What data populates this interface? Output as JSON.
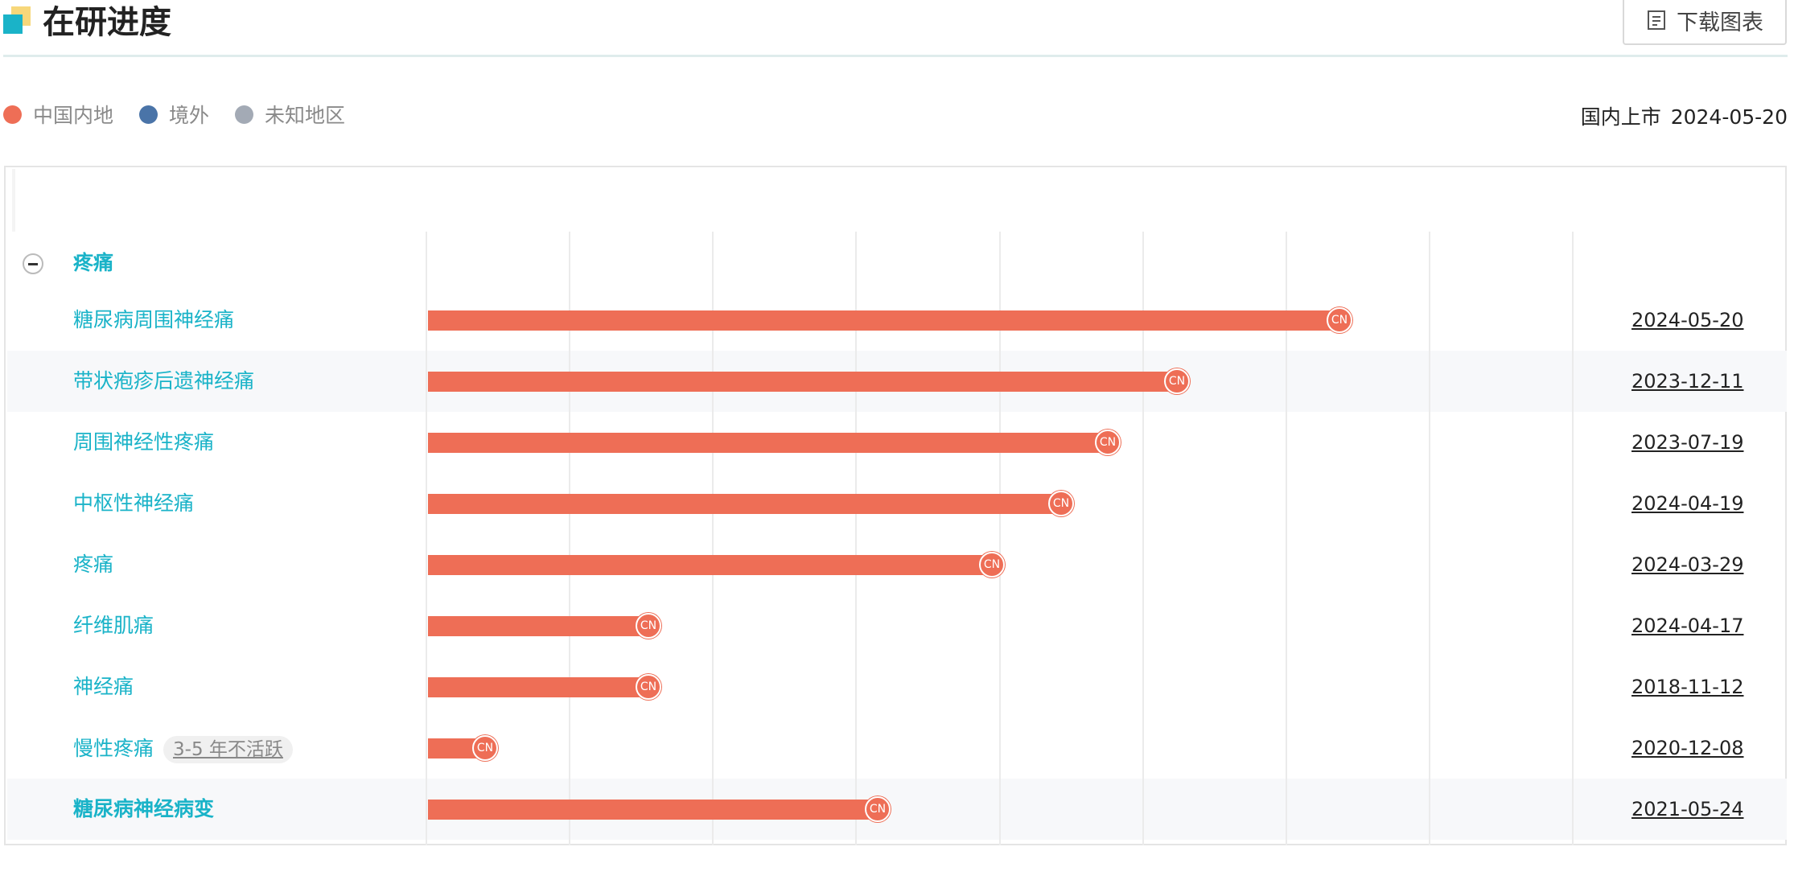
{
  "header": {
    "title": "在研进度",
    "download_label": "下载图表"
  },
  "legend": [
    {
      "label": "中国内地",
      "color": "#ee6e56"
    },
    {
      "label": "境外",
      "color": "#4a74a8"
    },
    {
      "label": "未知地区",
      "color": "#a3aab5"
    }
  ],
  "market": {
    "label": "国内上市",
    "date": "2024-05-20"
  },
  "icons": {
    "download": "document-icon",
    "collapse": "minus-circle-icon"
  },
  "chart_data": {
    "type": "bar",
    "orientation": "horizontal",
    "group": "疼痛",
    "rows": [
      {
        "label": "糖尿病周围神经痛",
        "value": 0.795,
        "marker": "CN",
        "date": "2024-05-20",
        "bold": false,
        "tag": ""
      },
      {
        "label": "带状疱疹后遗神经痛",
        "value": 0.653,
        "marker": "CN",
        "date": "2023-12-11",
        "bold": false,
        "tag": ""
      },
      {
        "label": "周围神经性疼痛",
        "value": 0.593,
        "marker": "CN",
        "date": "2023-07-19",
        "bold": false,
        "tag": ""
      },
      {
        "label": "中枢性神经痛",
        "value": 0.552,
        "marker": "CN",
        "date": "2024-04-19",
        "bold": false,
        "tag": ""
      },
      {
        "label": "疼痛",
        "value": 0.492,
        "marker": "CN",
        "date": "2024-03-29",
        "bold": false,
        "tag": ""
      },
      {
        "label": "纤维肌痛",
        "value": 0.192,
        "marker": "CN",
        "date": "2024-04-17",
        "bold": false,
        "tag": ""
      },
      {
        "label": "神经痛",
        "value": 0.192,
        "marker": "CN",
        "date": "2018-11-12",
        "bold": false,
        "tag": ""
      },
      {
        "label": "慢性疼痛",
        "value": 0.05,
        "marker": "CN",
        "date": "2020-12-08",
        "bold": false,
        "tag": "3-5 年不活跃"
      },
      {
        "label": "糖尿病神经病变",
        "value": 0.392,
        "marker": "CN",
        "date": "2021-05-24",
        "bold": true,
        "tag": ""
      }
    ],
    "grid_columns": 8,
    "grid": true,
    "legend_position": "top-left",
    "series_color": "#ee6e56"
  }
}
